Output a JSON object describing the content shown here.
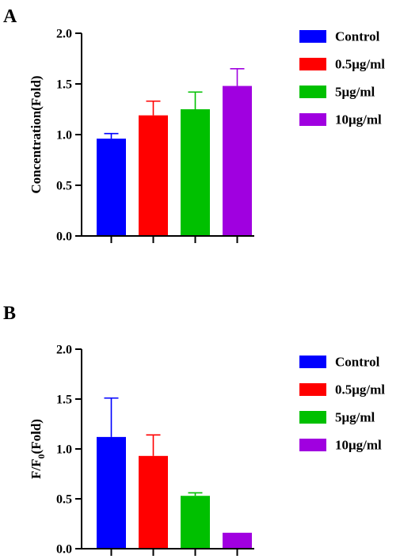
{
  "chart_data": [
    {
      "panel": "A",
      "type": "bar",
      "title": "",
      "xlabel": "",
      "ylabel": "Concentration(Fold)",
      "ylim": [
        0,
        2.0
      ],
      "yticks": [
        "0.0",
        "0.5",
        "1.0",
        "1.5",
        "2.0"
      ],
      "categories": [
        "Control",
        "0.5μg/ml",
        "5μg/ml",
        "10μg/ml"
      ],
      "values": [
        0.96,
        1.19,
        1.25,
        1.48
      ],
      "errors": [
        0.05,
        0.14,
        0.17,
        0.17
      ],
      "colors": [
        "#0000ff",
        "#ff0000",
        "#00c000",
        "#a000e0"
      ],
      "legend": "right"
    },
    {
      "panel": "B",
      "type": "bar",
      "title": "",
      "xlabel": "",
      "ylabel": "F/F",
      "ylabel_subscript": "0",
      "ylabel_suffix": "(Fold)",
      "ylim": [
        0,
        2.0
      ],
      "yticks": [
        "0.0",
        "0.5",
        "1.0",
        "1.5",
        "2.0"
      ],
      "categories": [
        "Control",
        "0.5μg/ml",
        "5μg/ml",
        "10μg/ml"
      ],
      "values": [
        1.12,
        0.93,
        0.53,
        0.16
      ],
      "errors": [
        0.39,
        0.21,
        0.03,
        0.0
      ],
      "colors": [
        "#0000ff",
        "#ff0000",
        "#00c000",
        "#a000e0"
      ],
      "legend": "right"
    }
  ]
}
